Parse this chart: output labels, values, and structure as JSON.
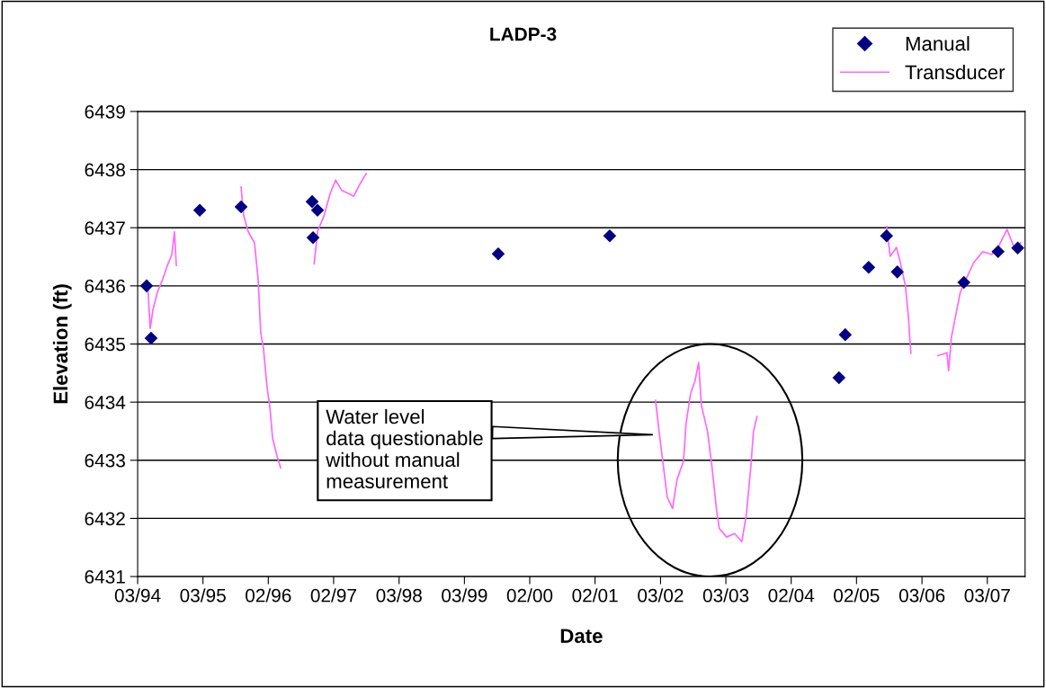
{
  "chart_data": {
    "type": "scatter",
    "title": "LADP-3",
    "xlabel": "Date",
    "ylabel": "Elevation (ft)",
    "series": [
      {
        "name": "Manual",
        "color": "#000080",
        "marker": "diamond",
        "x": [
          "1994-04-20",
          "1994-05-15",
          "1995-02-11",
          "1995-09-30",
          "1996-10-31",
          "1996-11-05",
          "1996-11-30",
          "1999-09-06",
          "2001-05-21",
          "2004-11-22",
          "2004-12-27",
          "2005-05-07",
          "2005-08-15",
          "2005-10-14",
          "2006-10-21",
          "2007-04-30",
          "2007-08-18"
        ],
        "values": [
          6436.0,
          6435.1,
          6437.3,
          6437.36,
          6437.45,
          6436.83,
          6437.3,
          6436.55,
          6436.86,
          6434.42,
          6435.16,
          6436.32,
          6436.86,
          6436.24,
          6436.06,
          6436.59,
          6436.65
        ]
      },
      {
        "name": "Transducer",
        "type": "line",
        "color": "#ff66ff",
        "marker": "none",
        "line_style": "solid",
        "x": [
          "1994-04-25",
          "1994-05-10",
          "1994-05-25",
          "1994-06-19",
          "1994-07-20",
          "1994-08-14",
          "1994-09-08",
          "1994-09-23",
          "1994-10-03",
          "1995-01-01",
          "1995-09-30",
          "1995-10-15",
          "1995-11-09",
          "1995-12-14",
          "1996-01-03",
          "1996-01-18",
          "1996-02-02",
          "1996-02-22",
          "1996-03-09",
          "1996-03-24",
          "1996-04-18",
          "1996-05-08",
          "1996-08-01",
          "1996-11-11",
          "1996-12-01",
          "1997-01-05",
          "1997-02-09",
          "1997-03-11",
          "1997-04-15",
          "1997-05-21",
          "1997-06-20",
          "1997-07-25",
          "1997-08-29",
          "1998-01-01",
          "2002-02-01",
          "2002-02-21",
          "2002-03-18",
          "2002-04-07",
          "2002-05-07",
          "2002-06-01",
          "2002-07-07",
          "2002-07-22",
          "2002-08-16",
          "2002-09-10",
          "2002-09-30",
          "2002-10-15",
          "2002-11-19",
          "2002-12-14",
          "2003-01-08",
          "2003-01-23",
          "2003-03-05",
          "2003-04-19",
          "2003-05-29",
          "2003-06-23",
          "2003-07-18",
          "2003-08-02",
          "2003-08-22",
          "2004-01-01",
          "2005-08-15",
          "2005-09-04",
          "2005-10-09",
          "2005-10-29",
          "2005-11-28",
          "2005-12-14",
          "2005-12-29",
          "2006-03-01",
          "2006-05-28",
          "2006-07-18",
          "2006-07-28",
          "2006-08-12",
          "2006-09-06",
          "2006-10-01",
          "2006-10-26",
          "2006-12-15",
          "2007-02-04",
          "2007-03-26",
          "2007-04-30",
          "2007-06-19",
          "2007-07-29",
          "2007-09-03"
        ],
        "values": [
          6436.09,
          6435.27,
          6435.58,
          6435.89,
          6436.12,
          6436.35,
          6436.54,
          6436.93,
          6436.35,
          null,
          6437.7,
          6437.2,
          6436.93,
          6436.74,
          6436.12,
          6435.19,
          6434.93,
          6434.26,
          6433.91,
          6433.38,
          6433.07,
          6432.87,
          null,
          6436.38,
          6436.94,
          6437.2,
          6437.59,
          6437.82,
          6437.64,
          6437.59,
          6437.54,
          6437.75,
          6437.93,
          null,
          6434.03,
          6433.49,
          6432.87,
          6432.37,
          6432.17,
          6432.67,
          6432.98,
          6433.64,
          6434.15,
          6434.37,
          6434.68,
          6433.95,
          6433.49,
          6432.87,
          6432.14,
          6431.83,
          6431.68,
          6431.74,
          6431.6,
          6432.05,
          6432.87,
          6433.49,
          6433.75,
          null,
          6437.02,
          6436.51,
          6436.66,
          6436.43,
          6436.01,
          6435.5,
          6434.84,
          null,
          6434.8,
          6434.85,
          6434.54,
          6435.11,
          6435.5,
          6435.89,
          6436.07,
          6436.4,
          6436.59,
          6436.54,
          6436.66,
          6436.97,
          6436.66,
          6436.74
        ]
      }
    ],
    "xlim": [
      "1994-03-01",
      "2007-09-28"
    ],
    "xticks": [
      {
        "value": "1994-03-01",
        "label": "03/94"
      },
      {
        "value": "1995-03-01",
        "label": "03/95"
      },
      {
        "value": "1996-02-29",
        "label": "02/96"
      },
      {
        "value": "1997-02-28",
        "label": "02/97"
      },
      {
        "value": "1998-03-01",
        "label": "03/98"
      },
      {
        "value": "1999-03-01",
        "label": "03/99"
      },
      {
        "value": "2000-02-29",
        "label": "02/00"
      },
      {
        "value": "2001-02-28",
        "label": "02/01"
      },
      {
        "value": "2002-03-01",
        "label": "03/02"
      },
      {
        "value": "2003-03-01",
        "label": "03/03"
      },
      {
        "value": "2004-02-29",
        "label": "02/04"
      },
      {
        "value": "2005-02-28",
        "label": "02/05"
      },
      {
        "value": "2006-03-01",
        "label": "03/06"
      },
      {
        "value": "2007-03-01",
        "label": "03/07"
      }
    ],
    "ylim": [
      6431,
      6439
    ],
    "yticks": [
      6431,
      6432,
      6433,
      6434,
      6435,
      6436,
      6437,
      6438,
      6439
    ],
    "grid": "y",
    "legend": "top right",
    "annotations": [
      "Water level\ndata questionable\nwithout manual\nmeasurement"
    ]
  }
}
